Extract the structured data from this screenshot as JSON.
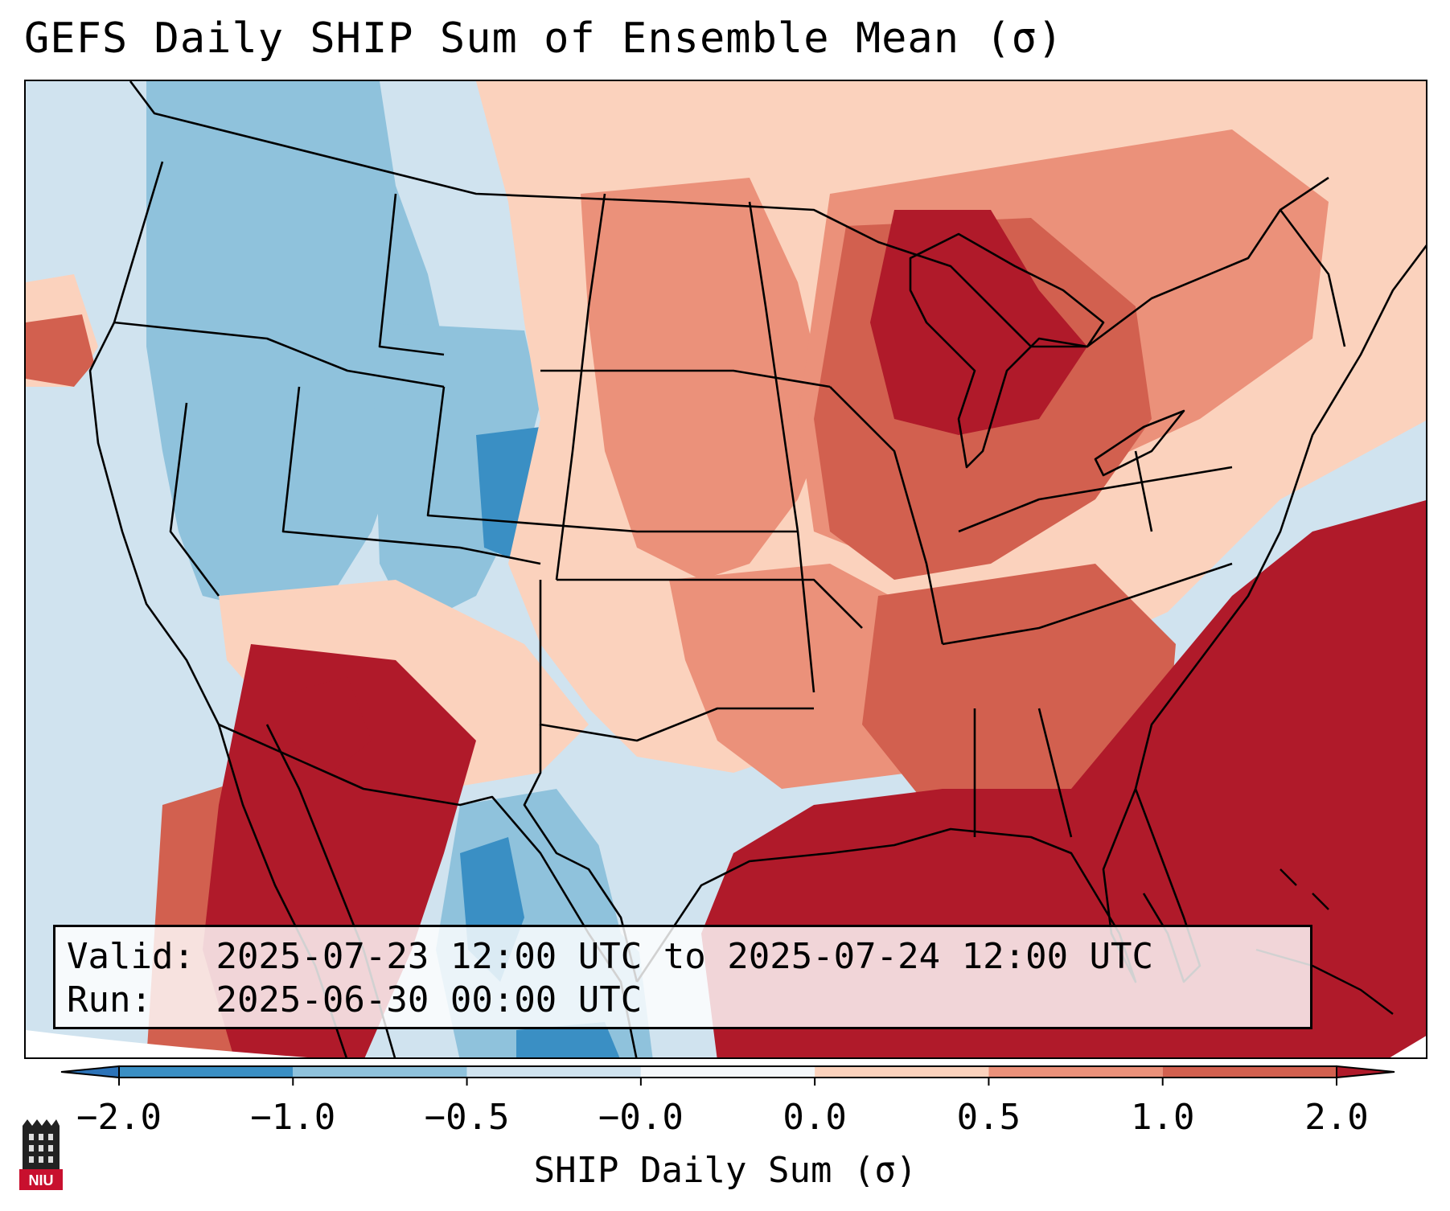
{
  "title": "GEFS Daily SHIP Sum of Ensemble Mean (σ)",
  "info": {
    "valid_label": "Valid:",
    "valid_value": "2025-07-23 12:00 UTC to 2025-07-24 12:00 UTC",
    "run_label": "Run:  ",
    "run_value": "2025-06-30 00:00 UTC"
  },
  "colorbar": {
    "label": "SHIP Daily Sum (σ)",
    "ticks": [
      "−2.0",
      "−1.0",
      "−0.5",
      "−0.0",
      "0.0",
      "0.5",
      "1.0",
      "2.0"
    ],
    "colors": [
      "#3a8fc4",
      "#8fc2dc",
      "#d0e3ef",
      "#f4f7fa",
      "#fbd2bd",
      "#eb917a",
      "#d2604f",
      "#b01a2a"
    ],
    "extend_low": "#2c73b8",
    "extend_high": "#b01a2a"
  },
  "colors": {
    "strong_negative": "#3a8fc4",
    "negative": "#8fc2dc",
    "weak_negative": "#d0e3ef",
    "weak_positive": "#fbd2bd",
    "positive": "#eb917a",
    "strong_positive": "#d2604f",
    "extreme_positive": "#b01a2a"
  },
  "logo": {
    "text": "NIU"
  }
}
